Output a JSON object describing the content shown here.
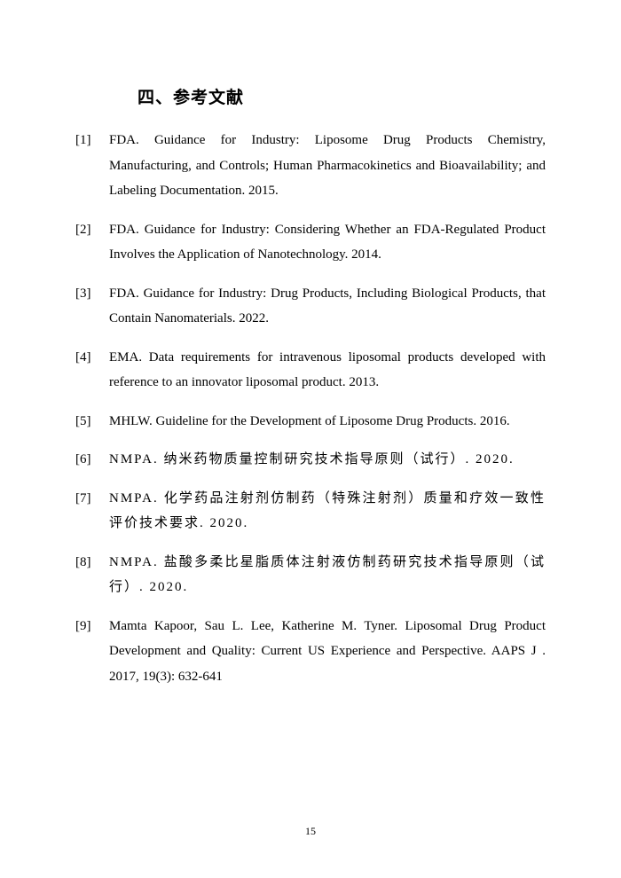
{
  "section_title": "四、参考文献",
  "references": [
    {
      "num": "[1]",
      "text": "FDA. Guidance for Industry: Liposome Drug Products Chemistry, Manufacturing, and Controls; Human Pharmacokinetics and Bioavailability; and Labeling Documentation. 2015.",
      "cn": false
    },
    {
      "num": "[2]",
      "text": "FDA. Guidance for Industry: Considering Whether an FDA-Regulated Product Involves the Application of Nanotechnology. 2014.",
      "cn": false
    },
    {
      "num": "[3]",
      "text": "FDA. Guidance for Industry: Drug Products, Including Biological Products, that Contain Nanomaterials. 2022.",
      "cn": false
    },
    {
      "num": "[4]",
      "text": "EMA. Data requirements for intravenous liposomal products developed with reference to an innovator liposomal product. 2013.",
      "cn": false
    },
    {
      "num": "[5]",
      "text": "MHLW. Guideline for the Development of Liposome Drug Products. 2016.",
      "cn": false
    },
    {
      "num": "[6]",
      "text": "NMPA. 纳米药物质量控制研究技术指导原则（试行）. 2020.",
      "cn": true
    },
    {
      "num": "[7]",
      "text": "NMPA. 化学药品注射剂仿制药（特殊注射剂）质量和疗效一致性评价技术要求. 2020.",
      "cn": true
    },
    {
      "num": "[8]",
      "text": "NMPA. 盐酸多柔比星脂质体注射液仿制药研究技术指导原则（试行）. 2020.",
      "cn": true
    },
    {
      "num": "[9]",
      "text": "Mamta Kapoor, Sau L. Lee, Katherine M. Tyner. Liposomal Drug Product Development and Quality: Current US Experience and Perspective. AAPS J . 2017, 19(3): 632-641",
      "cn": false
    }
  ],
  "page_number": "15"
}
